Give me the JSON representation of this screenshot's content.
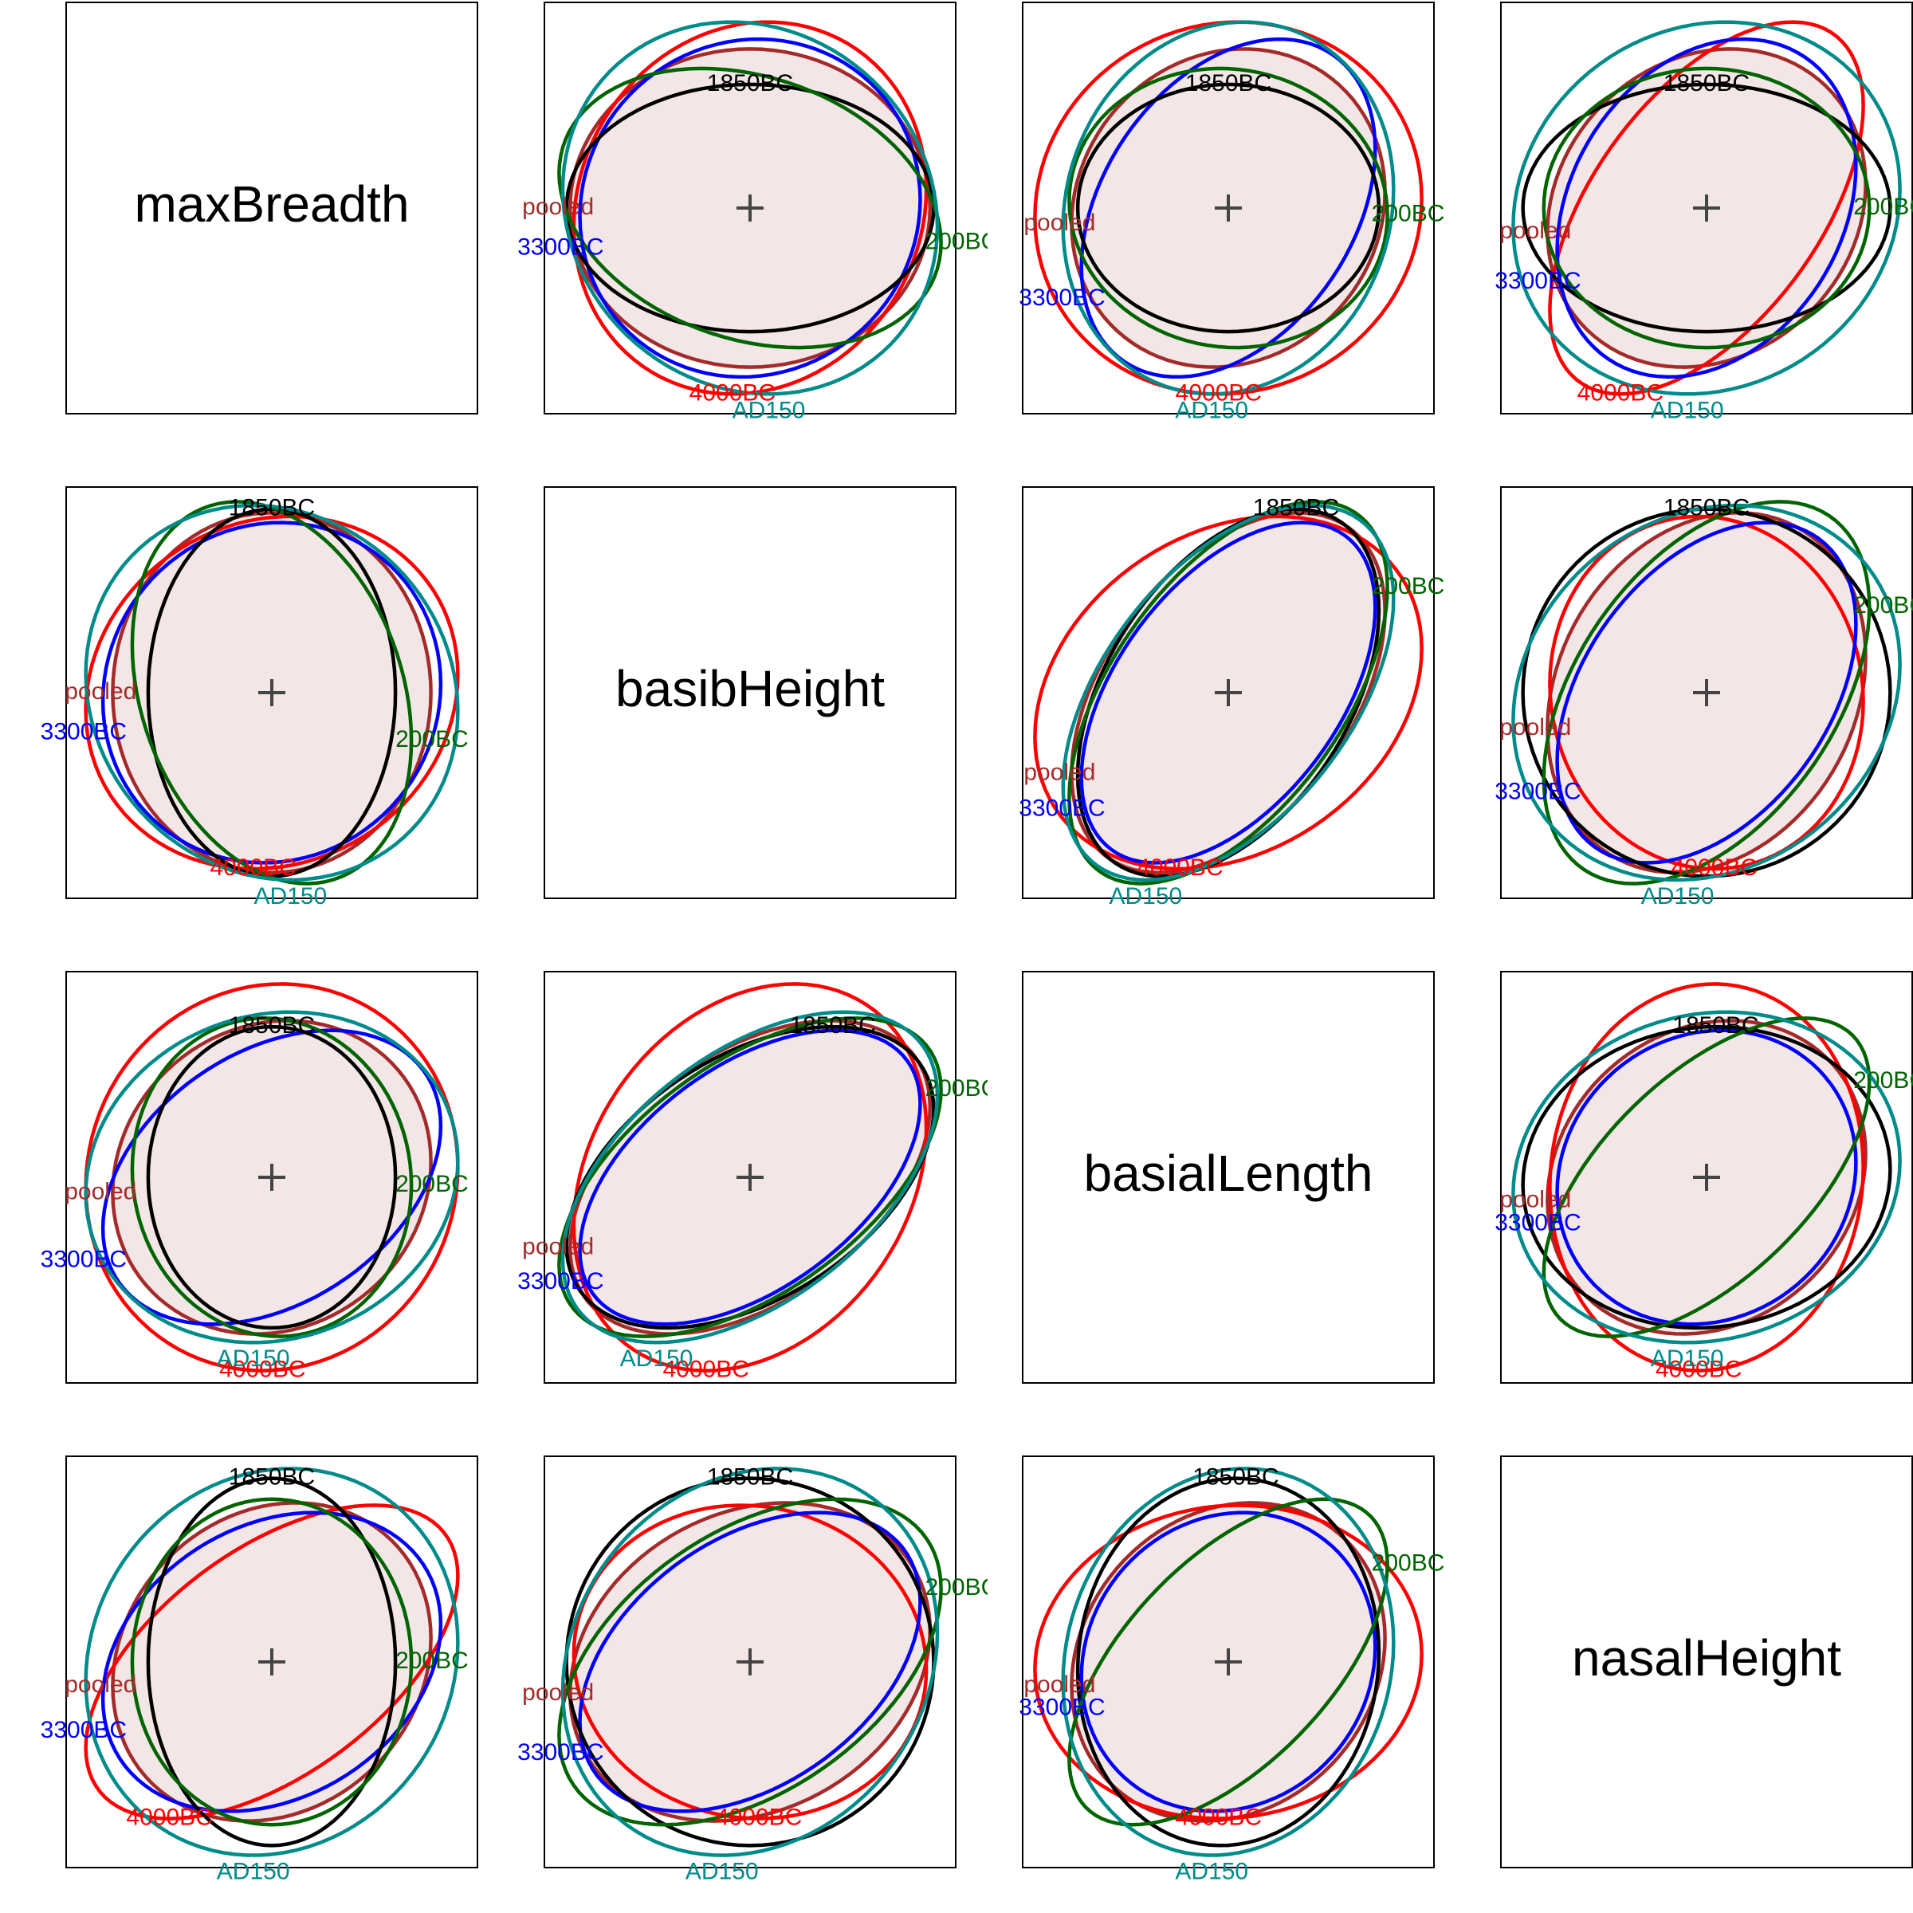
{
  "chart_data": {
    "type": "covariance-ellipse-matrix",
    "variables": [
      "maxBreadth",
      "basibHeight",
      "basialLength",
      "nasalHeight"
    ],
    "lim": [
      -1.68,
      1.68
    ],
    "groups": [
      {
        "name": "pooled",
        "color": "#a52a2a",
        "fill": "#f2e6e6",
        "sd": [
          1.3,
          1.47,
          1.28,
          1.3
        ],
        "cor": [
          [
            0.0
          ],
          [
            0.1,
            0.45
          ],
          [
            0.15,
            0.2,
            0.15
          ]
        ]
      },
      {
        "name": "4000BC",
        "color": "#ff0000",
        "sd": [
          1.52,
          1.44,
          1.58,
          1.28
        ],
        "cor": [
          [
            0.1
          ],
          [
            0.05,
            0.25
          ],
          [
            0.55,
            -0.05,
            0.05
          ]
        ]
      },
      {
        "name": "3300BC",
        "color": "#0000ff",
        "sd": [
          1.38,
          1.39,
          1.2,
          1.22
        ],
        "cor": [
          [
            0.05
          ],
          [
            0.35,
            0.5
          ],
          [
            0.25,
            0.4,
            0.1
          ]
        ]
      },
      {
        "name": "1850BC",
        "color": "#000000",
        "sd": [
          1.01,
          1.5,
          1.23,
          1.5
        ],
        "cor": [
          [
            0.0
          ],
          [
            0.0,
            0.45
          ],
          [
            0.0,
            0.0,
            0.05
          ]
        ]
      },
      {
        "name": "200BC",
        "color": "#006400",
        "sd": [
          1.14,
          1.56,
          1.3,
          1.33
        ],
        "cor": [
          [
            -0.25
          ],
          [
            -0.05,
            0.55
          ],
          [
            0.0,
            0.45,
            0.6
          ]
        ]
      },
      {
        "name": "AD150",
        "color": "#008b8b",
        "sd": [
          1.52,
          1.53,
          1.35,
          1.58
        ],
        "cor": [
          [
            -0.1
          ],
          [
            0.1,
            0.5
          ],
          [
            0.1,
            0.15,
            0.1
          ]
        ]
      }
    ]
  }
}
